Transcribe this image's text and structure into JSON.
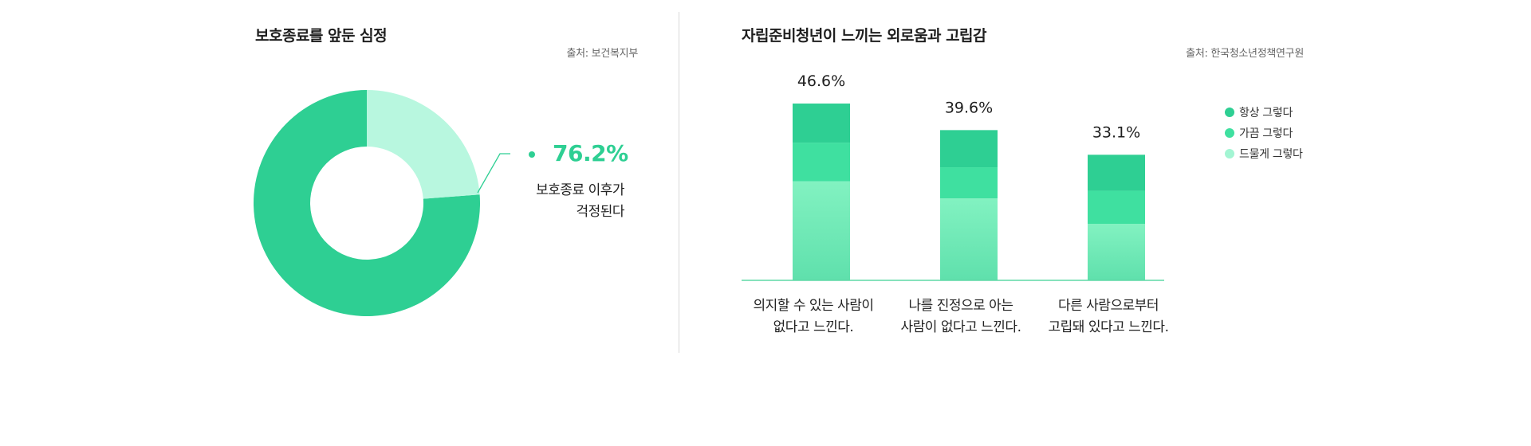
{
  "colors": {
    "accent": "#2ecf93",
    "donut_main": "#2ecf93",
    "donut_rest": "#b8f7df",
    "series_always": "#2ecf93",
    "series_sometimes": "#3fe0a0",
    "series_rarely": "#7ef0bf",
    "divider": "#d9d9d9"
  },
  "left_panel": {
    "title": "보호종료를 앞둔 심정",
    "source": "출처: 보건복지부",
    "callout_value": "76.2%",
    "callout_label_line1": "보호종료 이후가",
    "callout_label_line2": "걱정된다"
  },
  "right_panel": {
    "title": "자립준비청년이 느끼는 외로움과 고립감",
    "source": "출처: 한국청소년정책연구원"
  },
  "chart_data": [
    {
      "type": "pie",
      "title": "보호종료를 앞둔 심정",
      "donut": true,
      "slices": [
        {
          "label": "보호종료 이후가 걱정된다",
          "value": 76.2
        },
        {
          "label": "",
          "value": 23.8
        }
      ],
      "annotation": "76.2%"
    },
    {
      "type": "bar",
      "stacked": true,
      "title": "자립준비청년이 느끼는 외로움과 고립감",
      "categories": [
        [
          "의지할 수 있는 사람이",
          "없다고 느낀다."
        ],
        [
          "나를 진정으로 아는",
          "사람이 없다고 느낀다."
        ],
        [
          "다른 사람으로부터",
          "고립돼 있다고 느낀다."
        ]
      ],
      "totals": [
        "46.6%",
        "39.6%",
        "33.1%"
      ],
      "total_values": [
        46.6,
        39.6,
        33.1
      ],
      "series": [
        {
          "name": "드물게 그렇다",
          "values": [
            26.1,
            21.6,
            14.9
          ]
        },
        {
          "name": "가끔 그렇다",
          "values": [
            10.2,
            8.2,
            8.7
          ]
        },
        {
          "name": "항상 그렇다",
          "values": [
            10.3,
            9.8,
            9.5
          ]
        }
      ],
      "legend": [
        "항상 그렇다",
        "가끔 그렇다",
        "드물게 그렇다"
      ],
      "legend_position": "top-right",
      "ylim": [
        0,
        55
      ],
      "grid": false
    }
  ]
}
